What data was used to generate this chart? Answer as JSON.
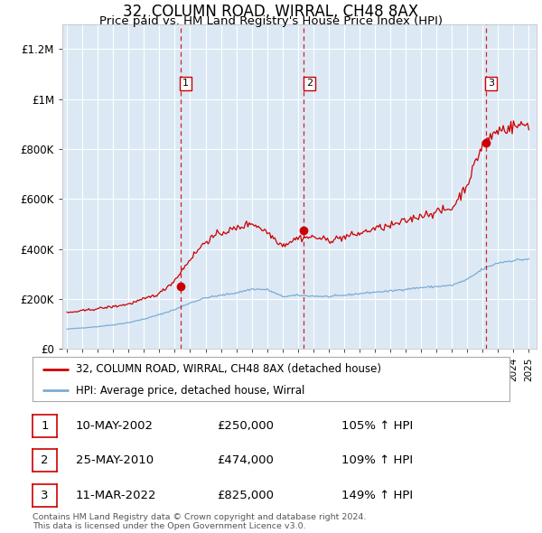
{
  "title": "32, COLUMN ROAD, WIRRAL, CH48 8AX",
  "subtitle": "Price paid vs. HM Land Registry's House Price Index (HPI)",
  "title_fontsize": 12,
  "subtitle_fontsize": 9.5,
  "ylim": [
    0,
    1300000
  ],
  "xlim_start": 1994.7,
  "xlim_end": 2025.5,
  "bg_color": "#dce9f5",
  "grid_color": "#ffffff",
  "hpi_color": "#7aadd4",
  "price_color": "#cc0000",
  "sale_marker_color": "#cc0000",
  "vline_color": "#cc0000",
  "sale1_x": 2002.36,
  "sale1_y": 250000,
  "sale1_label": "1",
  "sale2_x": 2010.39,
  "sale2_y": 474000,
  "sale2_label": "2",
  "sale3_x": 2022.19,
  "sale3_y": 825000,
  "sale3_label": "3",
  "legend_price_label": "32, COLUMN ROAD, WIRRAL, CH48 8AX (detached house)",
  "legend_hpi_label": "HPI: Average price, detached house, Wirral",
  "table_rows": [
    [
      "1",
      "10-MAY-2002",
      "£250,000",
      "105% ↑ HPI"
    ],
    [
      "2",
      "25-MAY-2010",
      "£474,000",
      "109% ↑ HPI"
    ],
    [
      "3",
      "11-MAR-2022",
      "£825,000",
      "149% ↑ HPI"
    ]
  ],
  "footnote": "Contains HM Land Registry data © Crown copyright and database right 2024.\nThis data is licensed under the Open Government Licence v3.0.",
  "ytick_labels": [
    "£0",
    "£200K",
    "£400K",
    "£600K",
    "£800K",
    "£1M",
    "£1.2M"
  ],
  "ytick_values": [
    0,
    200000,
    400000,
    600000,
    800000,
    1000000,
    1200000
  ],
  "hpi_base_values": {
    "1995": 80000,
    "1996": 85000,
    "1997": 90000,
    "1998": 97000,
    "1999": 106000,
    "2000": 120000,
    "2001": 138000,
    "2002": 158000,
    "2003": 185000,
    "2004": 205000,
    "2005": 215000,
    "2006": 225000,
    "2007": 240000,
    "2008": 238000,
    "2009": 210000,
    "2010": 215000,
    "2011": 212000,
    "2012": 210000,
    "2013": 215000,
    "2014": 222000,
    "2015": 228000,
    "2016": 232000,
    "2017": 240000,
    "2018": 246000,
    "2019": 250000,
    "2020": 255000,
    "2021": 278000,
    "2022": 320000,
    "2023": 345000,
    "2024": 355000,
    "2025": 360000
  },
  "price_base_values": {
    "1995": 145000,
    "1996": 153000,
    "1997": 162000,
    "1998": 170000,
    "1999": 180000,
    "2000": 200000,
    "2001": 222000,
    "2002": 275000,
    "2003": 360000,
    "2004": 430000,
    "2005": 465000,
    "2006": 482000,
    "2007": 505000,
    "2008": 468000,
    "2009": 415000,
    "2010": 445000,
    "2011": 448000,
    "2012": 435000,
    "2013": 448000,
    "2014": 462000,
    "2015": 482000,
    "2016": 492000,
    "2017": 512000,
    "2018": 535000,
    "2019": 548000,
    "2020": 562000,
    "2021": 660000,
    "2022": 820000,
    "2023": 875000,
    "2024": 890000,
    "2025": 900000
  }
}
